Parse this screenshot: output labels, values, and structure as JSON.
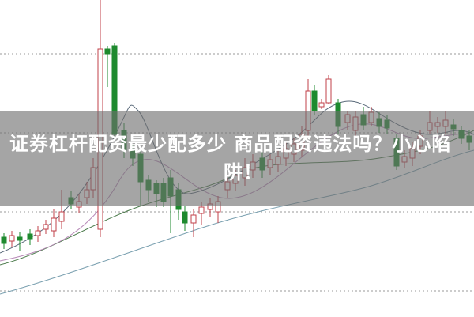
{
  "headline": {
    "line1": "证券杠杆配资最少配多少 商品配资违法吗？小心陷",
    "line2": "阱！"
  },
  "colors": {
    "up": "#c0404a",
    "down": "#1e8a2e",
    "grid": "#999999",
    "band": "#6e6e6e",
    "text": "#ffffff"
  },
  "chart_kind": "candlestick with moving averages"
}
